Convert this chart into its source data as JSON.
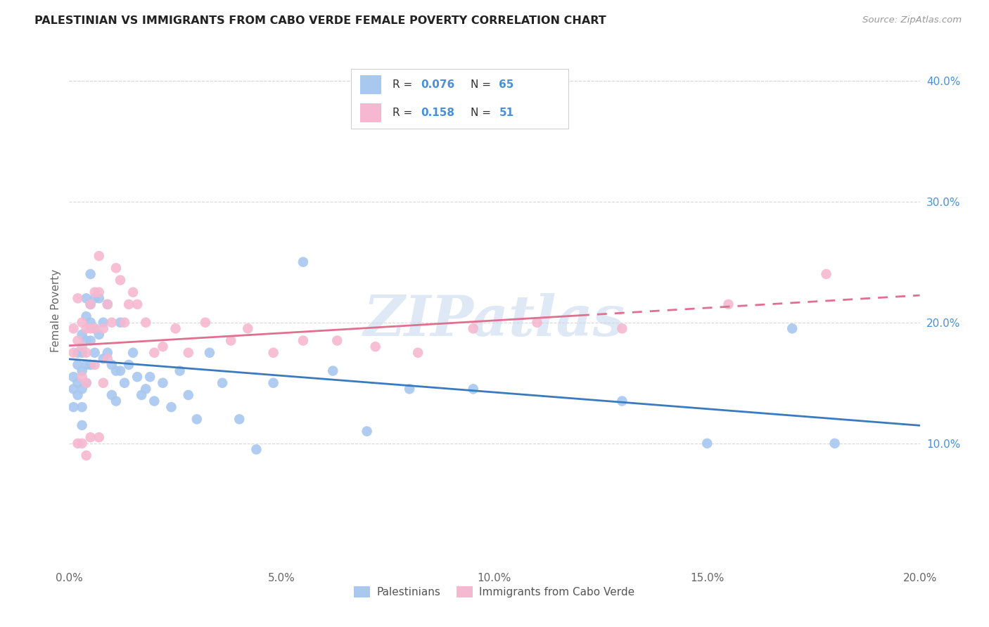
{
  "title": "PALESTINIAN VS IMMIGRANTS FROM CABO VERDE FEMALE POVERTY CORRELATION CHART",
  "source": "Source: ZipAtlas.com",
  "ylabel": "Female Poverty",
  "xlim": [
    0.0,
    0.2
  ],
  "ylim": [
    0.0,
    0.42
  ],
  "xticks": [
    0.0,
    0.05,
    0.1,
    0.15,
    0.2
  ],
  "yticks_right": [
    0.1,
    0.2,
    0.3,
    0.4
  ],
  "background_color": "#ffffff",
  "grid_color": "#d8d8d8",
  "palestinians_color": "#a8c8f0",
  "cabo_verde_color": "#f5b8d0",
  "palestinians_line_color": "#3a7bbf",
  "cabo_verde_line_color": "#e07090",
  "axis_color": "#4a90d9",
  "r_palestinians": 0.076,
  "n_palestinians": 65,
  "r_cabo_verde": 0.158,
  "n_cabo_verde": 51,
  "watermark": "ZIPatlas",
  "legend_label_1": "Palestinians",
  "legend_label_2": "Immigrants from Cabo Verde",
  "palestinians_x": [
    0.001,
    0.001,
    0.001,
    0.002,
    0.002,
    0.002,
    0.002,
    0.003,
    0.003,
    0.003,
    0.003,
    0.003,
    0.003,
    0.004,
    0.004,
    0.004,
    0.004,
    0.004,
    0.005,
    0.005,
    0.005,
    0.005,
    0.005,
    0.006,
    0.006,
    0.006,
    0.007,
    0.007,
    0.008,
    0.008,
    0.009,
    0.009,
    0.01,
    0.01,
    0.011,
    0.011,
    0.012,
    0.012,
    0.013,
    0.014,
    0.015,
    0.016,
    0.017,
    0.018,
    0.019,
    0.02,
    0.022,
    0.024,
    0.026,
    0.028,
    0.03,
    0.033,
    0.036,
    0.04,
    0.044,
    0.048,
    0.055,
    0.062,
    0.07,
    0.08,
    0.095,
    0.13,
    0.15,
    0.17,
    0.18
  ],
  "palestinians_y": [
    0.155,
    0.145,
    0.13,
    0.175,
    0.165,
    0.15,
    0.14,
    0.19,
    0.175,
    0.16,
    0.145,
    0.13,
    0.115,
    0.22,
    0.205,
    0.185,
    0.165,
    0.15,
    0.24,
    0.215,
    0.2,
    0.185,
    0.165,
    0.22,
    0.195,
    0.175,
    0.22,
    0.19,
    0.2,
    0.17,
    0.215,
    0.175,
    0.165,
    0.14,
    0.16,
    0.135,
    0.2,
    0.16,
    0.15,
    0.165,
    0.175,
    0.155,
    0.14,
    0.145,
    0.155,
    0.135,
    0.15,
    0.13,
    0.16,
    0.14,
    0.12,
    0.175,
    0.15,
    0.12,
    0.095,
    0.15,
    0.25,
    0.16,
    0.11,
    0.145,
    0.145,
    0.135,
    0.1,
    0.195,
    0.1
  ],
  "cabo_verde_x": [
    0.001,
    0.001,
    0.002,
    0.002,
    0.002,
    0.003,
    0.003,
    0.003,
    0.003,
    0.004,
    0.004,
    0.004,
    0.004,
    0.005,
    0.005,
    0.005,
    0.006,
    0.006,
    0.006,
    0.007,
    0.007,
    0.007,
    0.008,
    0.008,
    0.009,
    0.009,
    0.01,
    0.011,
    0.012,
    0.013,
    0.014,
    0.015,
    0.016,
    0.018,
    0.02,
    0.022,
    0.025,
    0.028,
    0.032,
    0.038,
    0.042,
    0.048,
    0.055,
    0.063,
    0.072,
    0.082,
    0.095,
    0.11,
    0.13,
    0.155,
    0.178
  ],
  "cabo_verde_y": [
    0.195,
    0.175,
    0.22,
    0.185,
    0.1,
    0.2,
    0.18,
    0.155,
    0.1,
    0.195,
    0.175,
    0.15,
    0.09,
    0.215,
    0.195,
    0.105,
    0.225,
    0.195,
    0.165,
    0.255,
    0.225,
    0.105,
    0.195,
    0.15,
    0.215,
    0.17,
    0.2,
    0.245,
    0.235,
    0.2,
    0.215,
    0.225,
    0.215,
    0.2,
    0.175,
    0.18,
    0.195,
    0.175,
    0.2,
    0.185,
    0.195,
    0.175,
    0.185,
    0.185,
    0.18,
    0.175,
    0.195,
    0.2,
    0.195,
    0.215,
    0.24
  ],
  "cabo_verde_data_xlim": 0.12
}
